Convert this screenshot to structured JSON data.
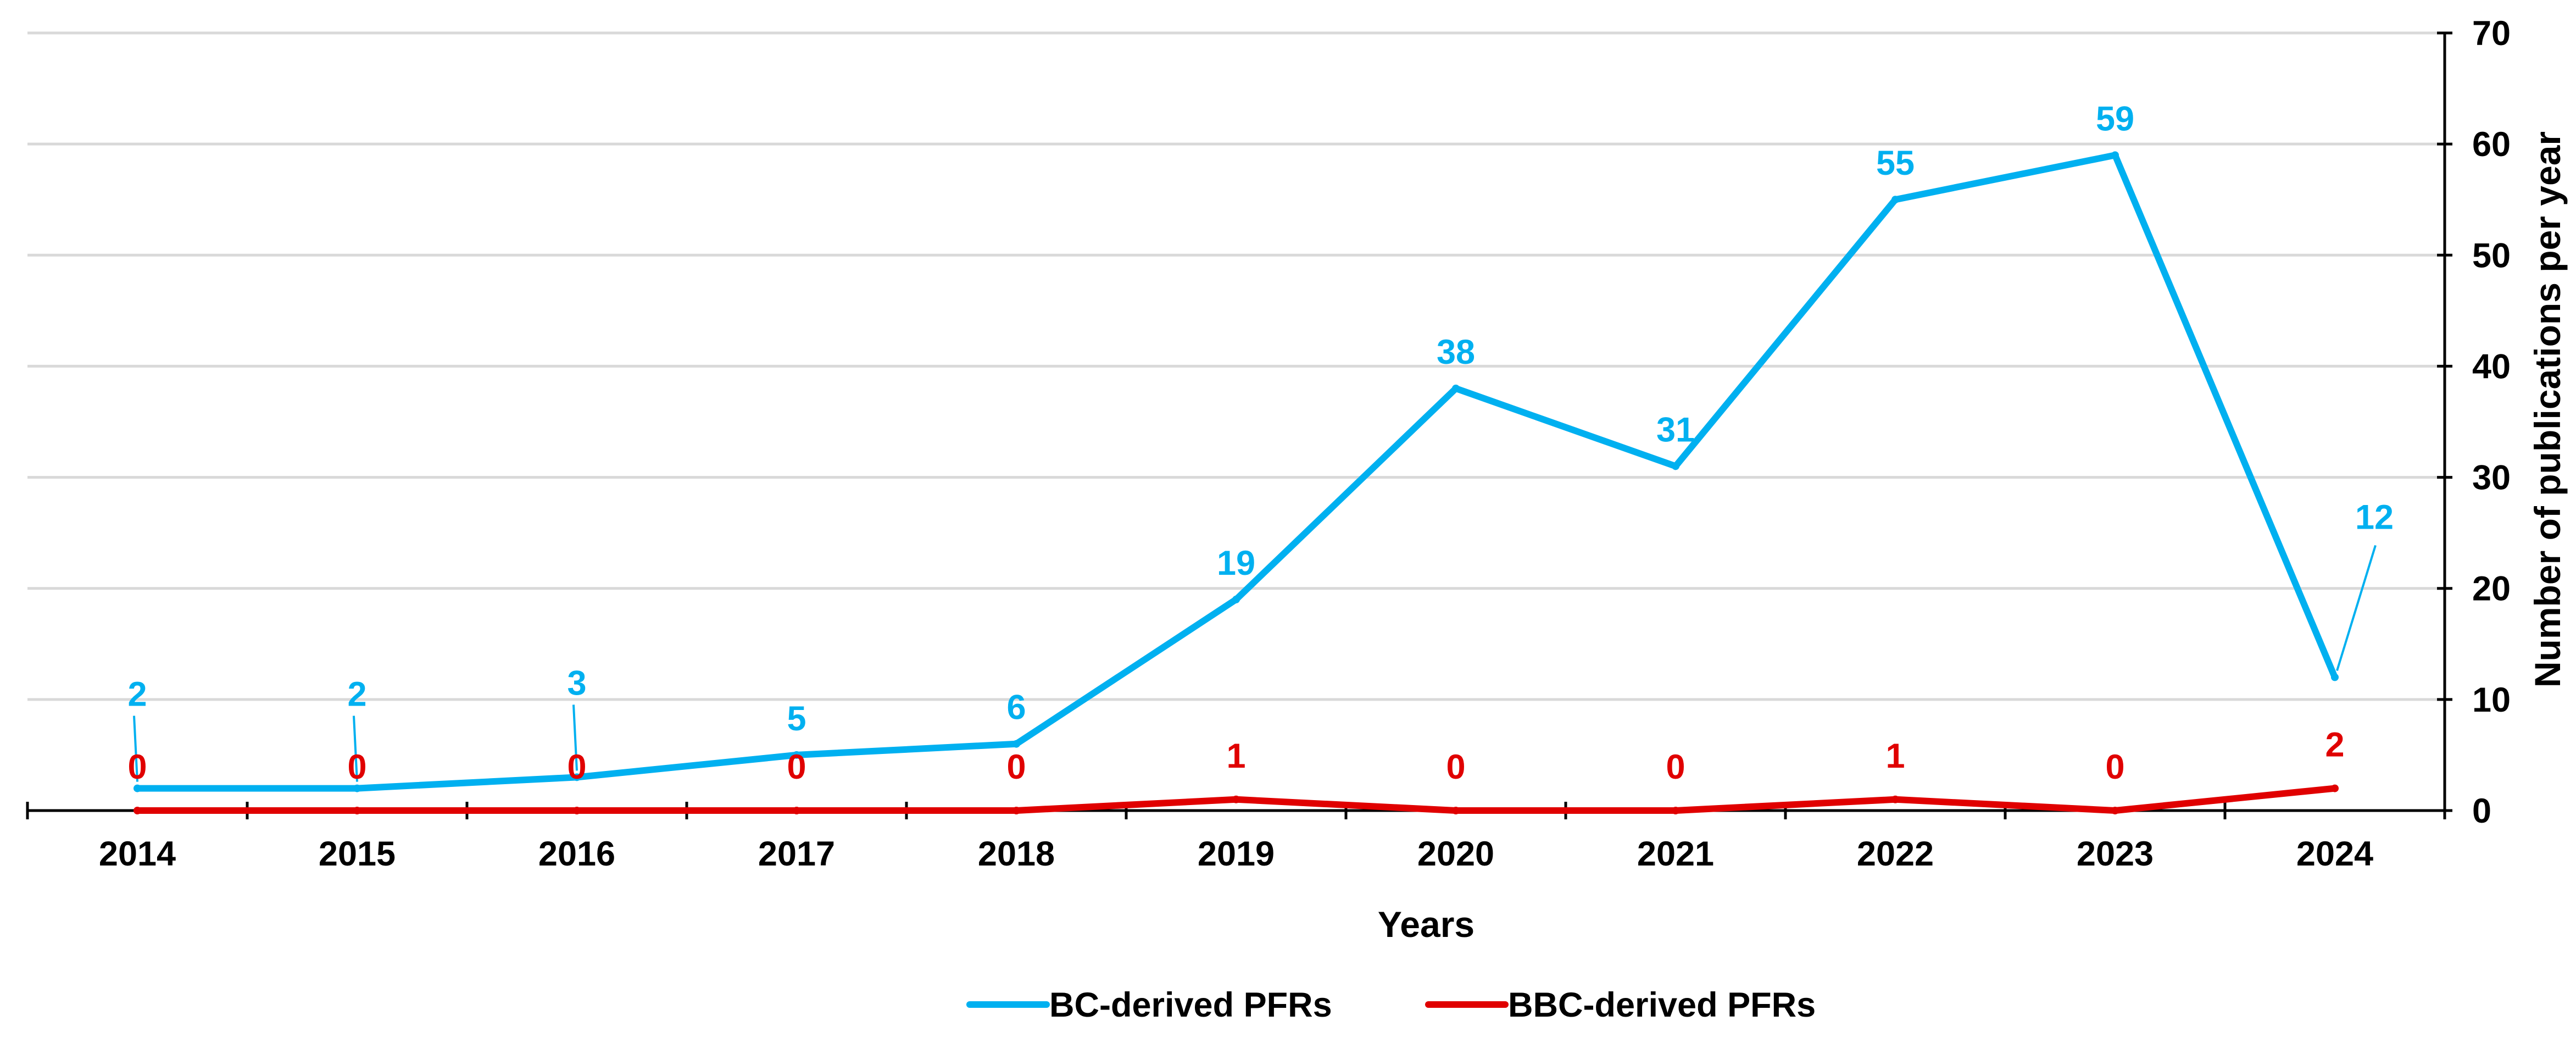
{
  "chart_data": {
    "type": "line",
    "title": "",
    "xlabel": "Years",
    "ylabel": "Number of publications per year",
    "categories": [
      "2014",
      "2015",
      "2016",
      "2017",
      "2018",
      "2019",
      "2020",
      "2021",
      "2022",
      "2023",
      "2024"
    ],
    "ylim": [
      0,
      70
    ],
    "yticks": [
      0,
      10,
      20,
      30,
      40,
      50,
      60,
      70
    ],
    "ytick_labels": [
      "0",
      "10",
      "20",
      "30",
      "40",
      "50",
      "60",
      "70"
    ],
    "y_axis_side": "right",
    "grid": true,
    "legend_position": "bottom",
    "series": [
      {
        "name": "BC-derived PFRs",
        "color": "#00b0f0",
        "values": [
          2,
          2,
          3,
          5,
          6,
          19,
          38,
          31,
          55,
          59,
          12
        ],
        "labels": [
          "2",
          "2",
          "3",
          "5",
          "6",
          "19",
          "38",
          "31",
          "55",
          "59",
          "12"
        ]
      },
      {
        "name": "BBC-derived PFRs",
        "color": "#e00000",
        "values": [
          0,
          0,
          0,
          0,
          0,
          1,
          0,
          0,
          1,
          0,
          2
        ],
        "labels": [
          "0",
          "0",
          "0",
          "0",
          "0",
          "1",
          "0",
          "0",
          "1",
          "0",
          "2"
        ]
      }
    ]
  }
}
